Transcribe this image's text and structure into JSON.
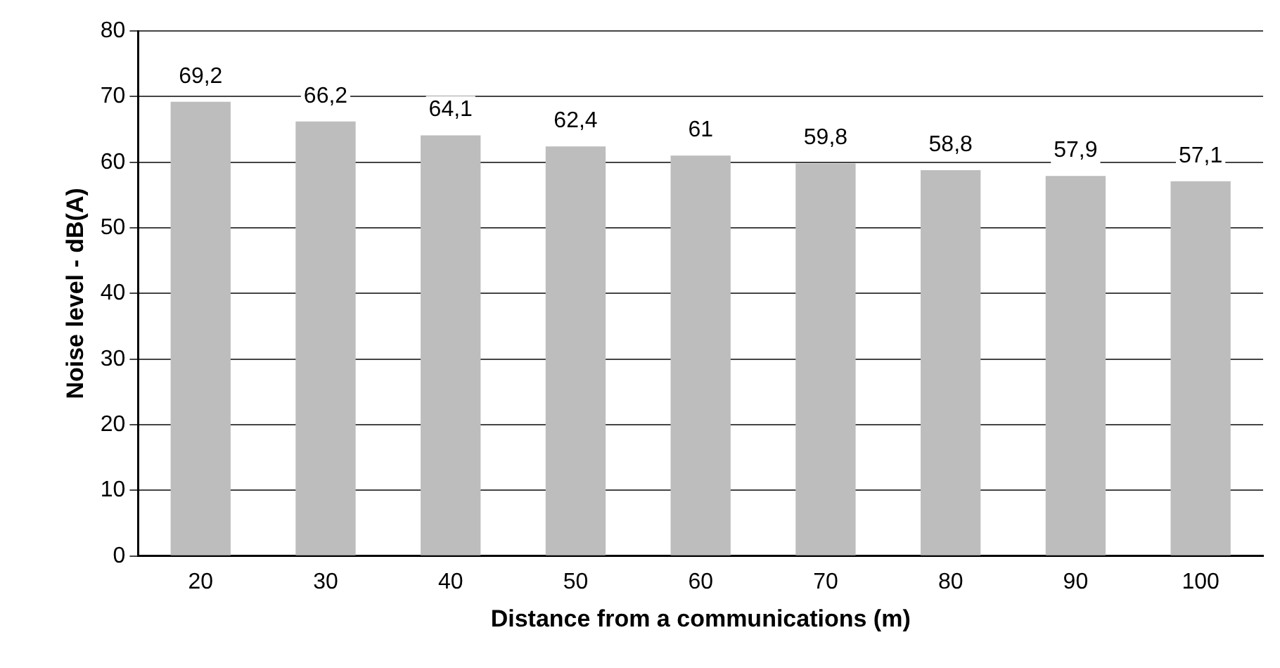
{
  "chart_data": {
    "type": "bar",
    "xlabel": "Distance from a communications (m)",
    "ylabel": "Noise level - dB(A)",
    "categories": [
      "20",
      "30",
      "40",
      "50",
      "60",
      "70",
      "80",
      "90",
      "100"
    ],
    "values": [
      69.2,
      66.2,
      64.1,
      62.4,
      61,
      59.8,
      58.8,
      57.9,
      57.1
    ],
    "value_labels": [
      "69,2",
      "66,2",
      "64,1",
      "62,4",
      "61",
      "59,8",
      "58,8",
      "57,9",
      "57,1"
    ],
    "color": "#bdbdbd",
    "ylim": [
      0,
      80
    ],
    "yticks": [
      0,
      10,
      20,
      30,
      40,
      50,
      60,
      70,
      80
    ],
    "grid": "y",
    "legend": false
  }
}
